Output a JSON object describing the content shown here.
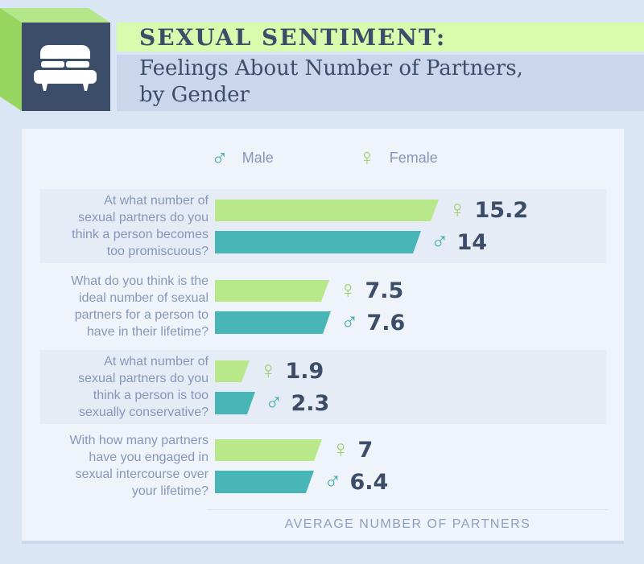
{
  "header": {
    "title": "SEXUAL SENTIMENT:",
    "subtitle_line1": "Feelings About Number of Partners,",
    "subtitle_line2": "by Gender"
  },
  "legend": {
    "male_label": "Male",
    "female_label": "Female",
    "male_symbol": "♂",
    "female_symbol": "♀"
  },
  "questions_lines": [
    [
      "At what number of",
      "sexual partners do you",
      "think a person becomes",
      "too promiscuous?"
    ],
    [
      "What do you think is the",
      "ideal number of sexual",
      "partners for a person to",
      "have in their lifetime?"
    ],
    [
      "At what number of",
      "sexual partners do you",
      "think a person is too",
      "sexually conservative?"
    ],
    [
      "With how many partners",
      "have you engaged in",
      "sexual intercourse over",
      "your lifetime?"
    ]
  ],
  "display_values": {
    "female": [
      "15.2",
      "7.5",
      "1.9",
      "7"
    ],
    "male": [
      "14",
      "7.6",
      "2.3",
      "6.4"
    ]
  },
  "footer": {
    "axis_label": "AVERAGE NUMBER OF PARTNERS"
  },
  "colors": {
    "page_bg": "#dbe6f4",
    "panel_bg": "#eff4fa",
    "row_stripe": "#e5ecf5",
    "title_strip": "#d8fcae",
    "subtitle_strip": "#cbd6ec",
    "navy": "#3b4d68",
    "muted_text": "#8696bb",
    "footer_text": "#8e9ec0",
    "female_bar": "#b9e88b",
    "male_bar": "#48b6b7",
    "female_symbol": "#9cd26b",
    "male_symbol": "#3fafab",
    "cube_top": "#b3e789",
    "cube_left": "#96d660"
  },
  "chart_data": {
    "type": "bar",
    "orientation": "horizontal",
    "title": "SEXUAL SENTIMENT: Feelings About Number of Partners, by Gender",
    "xlabel": "AVERAGE NUMBER OF PARTNERS",
    "xlim": [
      0,
      16
    ],
    "grid": false,
    "legend_position": "top",
    "categories": [
      "At what number of sexual partners do you think a person becomes too promiscuous?",
      "What do you think is the ideal number of sexual partners for a person to have in their lifetime?",
      "At what number of sexual partners do you think a person is too sexually conservative?",
      "With how many partners have you engaged in sexual intercourse over your lifetime?"
    ],
    "series": [
      {
        "name": "Female",
        "color": "#b9e88b",
        "values": [
          15.2,
          7.5,
          1.9,
          7
        ]
      },
      {
        "name": "Male",
        "color": "#48b6b7",
        "values": [
          14,
          7.6,
          2.3,
          6.4
        ]
      }
    ]
  }
}
